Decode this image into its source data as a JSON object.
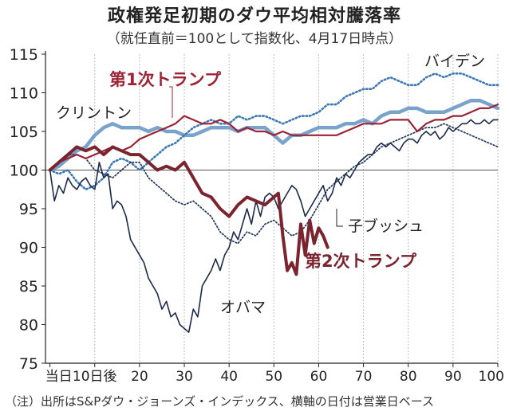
{
  "header": {
    "title": "政権発足初期のダウ平均相対騰落率",
    "subtitle": "（就任直前＝100として指数化、4月17日時点）"
  },
  "footnote": "（注）出所はS&Pダウ・ジョーンズ・インデックス、横軸の日付は営業日ベース",
  "colors": {
    "trump1": "#9b2335",
    "trump2": "#7a2430",
    "clinton": "#7aa3cc",
    "biden": "#3d78b4",
    "bush": "#2b3f63",
    "obama": "#1c2a4a",
    "grid": "#bdbdbd"
  },
  "chart_data": {
    "type": "line",
    "title": "政権発足初期のダウ平均相対騰落率",
    "subtitle": "（就任直前＝100として指数化、4月17日時点）",
    "xlabel": "",
    "ylabel": "",
    "xlim": [
      -1,
      100
    ],
    "ylim": [
      75,
      115
    ],
    "x_ticks": [
      {
        "value": 0,
        "label": "当日"
      },
      {
        "value": 10,
        "label": "10日後"
      },
      {
        "value": 20,
        "label": "20"
      },
      {
        "value": 30,
        "label": "30"
      },
      {
        "value": 40,
        "label": "40"
      },
      {
        "value": 50,
        "label": "50"
      },
      {
        "value": 60,
        "label": "60"
      },
      {
        "value": 70,
        "label": "70"
      },
      {
        "value": 80,
        "label": "80"
      },
      {
        "value": 90,
        "label": "90"
      },
      {
        "value": 100,
        "label": "100"
      }
    ],
    "y_ticks": [
      75,
      80,
      85,
      90,
      95,
      100,
      105,
      110,
      115
    ],
    "grid": "vertical",
    "legend": "inline labels",
    "series": [
      {
        "name": "第1次トランプ",
        "style": "solid-medium",
        "x": [
          0,
          2,
          4,
          6,
          8,
          10,
          12,
          14,
          16,
          18,
          20,
          22,
          24,
          26,
          28,
          30,
          32,
          34,
          36,
          38,
          40,
          42,
          44,
          46,
          48,
          50,
          52,
          54,
          56,
          58,
          60,
          62,
          64,
          66,
          68,
          70,
          72,
          74,
          76,
          78,
          80,
          82,
          84,
          86,
          88,
          90,
          92,
          94,
          96,
          98,
          100
        ],
        "y": [
          100,
          101,
          101.5,
          102,
          101.5,
          102,
          102.5,
          103,
          102.5,
          103,
          104,
          104.5,
          105,
          105.5,
          106,
          107,
          106.5,
          106,
          106,
          106.5,
          106,
          105,
          105.5,
          105,
          105,
          104.5,
          105,
          104.5,
          104.5,
          104.5,
          104.5,
          104.5,
          104.5,
          105,
          105.5,
          106,
          106,
          106,
          106.5,
          106.5,
          106.5,
          105,
          106,
          106.5,
          106.5,
          107,
          107,
          107.5,
          108,
          108,
          108.5
        ]
      },
      {
        "name": "第2次トランプ",
        "style": "solid-thick",
        "x": [
          0,
          2,
          4,
          6,
          8,
          10,
          12,
          14,
          16,
          18,
          20,
          22,
          24,
          26,
          28,
          30,
          32,
          34,
          36,
          38,
          40,
          42,
          44,
          46,
          48,
          50,
          51,
          52,
          53,
          54,
          55,
          56,
          57,
          58,
          59,
          60,
          61,
          62
        ],
        "y": [
          100,
          101,
          102,
          103,
          102.5,
          103,
          102,
          103,
          102.5,
          102,
          102,
          101,
          100,
          100.5,
          100,
          101,
          99,
          97,
          96.5,
          95,
          94,
          95.5,
          96.5,
          96,
          95.5,
          96.5,
          97,
          91.5,
          87,
          88,
          86.5,
          93,
          89,
          93.5,
          90.5,
          92.5,
          91.5,
          90
        ]
      },
      {
        "name": "クリントン",
        "style": "solid-wide-light",
        "x": [
          0,
          2,
          4,
          6,
          8,
          10,
          12,
          14,
          16,
          18,
          20,
          22,
          24,
          26,
          28,
          30,
          32,
          34,
          36,
          38,
          40,
          42,
          44,
          46,
          48,
          50,
          52,
          54,
          56,
          58,
          60,
          62,
          64,
          66,
          68,
          70,
          72,
          74,
          76,
          78,
          80,
          82,
          84,
          86,
          88,
          90,
          92,
          94,
          96,
          98,
          100
        ],
        "y": [
          100,
          100.5,
          101.5,
          102.5,
          103,
          104.5,
          105.5,
          106,
          105.5,
          105.5,
          105.5,
          105,
          105.5,
          105,
          105,
          104.5,
          104.5,
          105,
          105.5,
          105.5,
          105.5,
          105,
          105.5,
          105.5,
          105.5,
          104.5,
          103.5,
          104.5,
          104.5,
          105,
          105.5,
          105.5,
          105.5,
          106,
          106,
          106.5,
          106,
          107,
          107.5,
          107.5,
          108,
          108,
          107.5,
          107.5,
          107.5,
          108,
          108.5,
          109,
          109,
          108.5,
          108
        ]
      },
      {
        "name": "バイデン",
        "style": "dotted",
        "x": [
          0,
          2,
          4,
          6,
          8,
          10,
          12,
          14,
          16,
          18,
          20,
          22,
          24,
          26,
          28,
          30,
          32,
          34,
          36,
          38,
          40,
          42,
          44,
          46,
          48,
          50,
          52,
          54,
          56,
          58,
          60,
          62,
          64,
          66,
          68,
          70,
          72,
          74,
          76,
          78,
          80,
          82,
          84,
          86,
          88,
          90,
          92,
          94,
          96,
          98,
          100
        ],
        "y": [
          100,
          99.5,
          100,
          98.5,
          97.5,
          98,
          99,
          101,
          101.5,
          101,
          100,
          101,
          102,
          103,
          103.5,
          104.5,
          105.5,
          106,
          106.5,
          106,
          106,
          107,
          106.5,
          107,
          107,
          106.5,
          106,
          106.5,
          107,
          107,
          107.5,
          108.5,
          108.5,
          109.5,
          110,
          110.5,
          110.5,
          111.5,
          112,
          111.5,
          111,
          111,
          112,
          112.5,
          112,
          112.5,
          112.5,
          112,
          111.5,
          111,
          111
        ]
      },
      {
        "name": "子ブッシュ",
        "style": "dotted-dark",
        "x": [
          0,
          2,
          4,
          6,
          8,
          10,
          12,
          14,
          16,
          18,
          20,
          22,
          24,
          26,
          28,
          30,
          32,
          34,
          36,
          38,
          40,
          42,
          44,
          46,
          48,
          50,
          52,
          54,
          56,
          58,
          60,
          62,
          64,
          66,
          68,
          70,
          72,
          74,
          76,
          78,
          80,
          82,
          84,
          86,
          88,
          90,
          92,
          94,
          96,
          98,
          100
        ],
        "y": [
          100,
          101,
          102,
          102,
          101.5,
          100,
          99.5,
          99,
          100,
          101,
          101,
          99,
          98,
          97,
          96,
          95.5,
          96,
          95,
          94,
          92,
          91,
          90.5,
          92,
          91.5,
          93,
          93.5,
          92.5,
          91.5,
          92,
          93.5,
          95.5,
          97.5,
          98.5,
          99.5,
          100.5,
          101,
          102,
          103,
          103.5,
          104,
          104.5,
          105,
          105.5,
          105.5,
          106,
          105.5,
          105,
          104.5,
          104,
          103.5,
          103
        ]
      },
      {
        "name": "オバマ",
        "style": "solid-thin",
        "x": [
          0,
          1,
          2,
          3,
          4,
          5,
          6,
          7,
          8,
          9,
          10,
          11,
          12,
          13,
          14,
          15,
          16,
          17,
          18,
          19,
          20,
          21,
          22,
          23,
          24,
          25,
          26,
          27,
          28,
          29,
          30,
          31,
          32,
          33,
          34,
          35,
          36,
          37,
          38,
          39,
          40,
          41,
          42,
          43,
          44,
          45,
          46,
          47,
          48,
          49,
          50,
          51,
          52,
          53,
          54,
          55,
          56,
          57,
          58,
          59,
          60,
          61,
          62,
          63,
          64,
          65,
          66,
          67,
          68,
          69,
          70,
          71,
          72,
          73,
          74,
          75,
          76,
          77,
          78,
          79,
          80,
          81,
          82,
          83,
          84,
          85,
          86,
          87,
          88,
          89,
          90,
          91,
          92,
          93,
          94,
          95,
          96,
          97,
          98,
          99,
          100
        ],
        "y": [
          100,
          96,
          98,
          97,
          99,
          98,
          97.5,
          98.5,
          99,
          98,
          97.5,
          101,
          99,
          99.5,
          95,
          96,
          95.5,
          94,
          91,
          90,
          89,
          88,
          86,
          85,
          84,
          82,
          83,
          81,
          81.5,
          80,
          79.5,
          79,
          82,
          81,
          85,
          86,
          87,
          88.5,
          87,
          89,
          90,
          92,
          91,
          93,
          95,
          93,
          96,
          94,
          96.5,
          97,
          96.5,
          95,
          96,
          97,
          98,
          97.5,
          96,
          94,
          95,
          96,
          97,
          98,
          96,
          97,
          99,
          98,
          99.5,
          99,
          100,
          101,
          101.5,
          102,
          102,
          103,
          103.5,
          103,
          103.5,
          103,
          102.5,
          103.5,
          104,
          104,
          103.5,
          104.5,
          105,
          104.5,
          105,
          104,
          104.5,
          105.5,
          105,
          105.5,
          106,
          106,
          106.5,
          106,
          106,
          106.5,
          106,
          106.5,
          106.5
        ]
      }
    ],
    "annotations": [
      {
        "text": "第1次トランプ",
        "series": "第1次トランプ"
      },
      {
        "text": "第2次トランプ",
        "series": "第2次トランプ"
      },
      {
        "text": "クリントン",
        "series": "クリントン"
      },
      {
        "text": "バイデン",
        "series": "バイデン"
      },
      {
        "text": "子ブッシュ",
        "series": "子ブッシュ"
      },
      {
        "text": "オバマ",
        "series": "オバマ"
      }
    ]
  }
}
